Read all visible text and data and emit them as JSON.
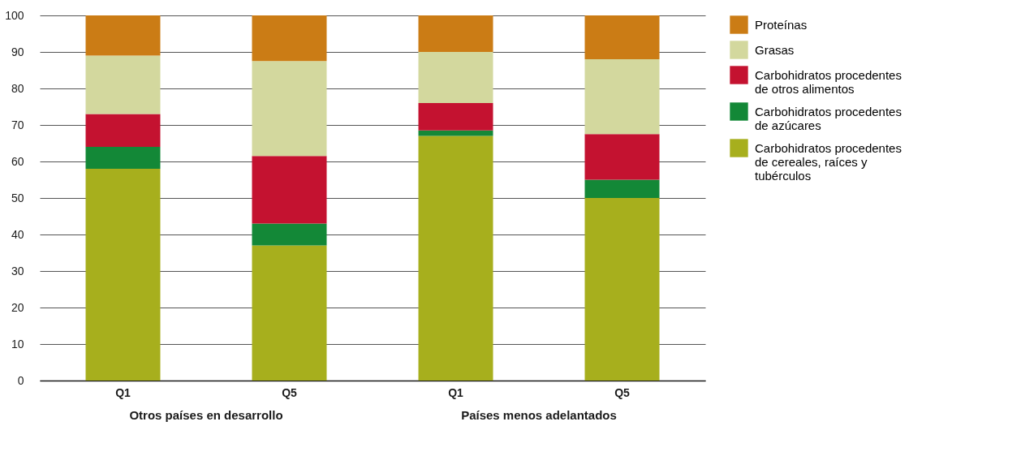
{
  "chart_data": {
    "type": "bar",
    "stacked": true,
    "categories": [
      "Q1",
      "Q5",
      "Q1",
      "Q5"
    ],
    "series": [
      {
        "name": "Carbohidratos procedentes de cereales, raíces y tubérculos",
        "color": "#a7af1d",
        "values": [
          58,
          37,
          67,
          50
        ]
      },
      {
        "name": "Carbohidratos procedentes de azúcares",
        "color": "#138837",
        "values": [
          6,
          6,
          1.5,
          5
        ]
      },
      {
        "name": "Carbohidratos procedentes de otros alimentos",
        "color": "#c41230",
        "values": [
          9,
          18.5,
          7.5,
          12.5
        ]
      },
      {
        "name": "Grasas",
        "color": "#d3d89e",
        "values": [
          16,
          26,
          14,
          20.5
        ]
      },
      {
        "name": "Proteínas",
        "color": "#cb7c15",
        "values": [
          11,
          12.5,
          10,
          12
        ]
      }
    ],
    "annotations": [
      "Otros países en desarrollo",
      "Países menos adelantados"
    ],
    "ylim": [
      0,
      100
    ],
    "yticks": [
      0,
      10,
      20,
      30,
      40,
      50,
      60,
      70,
      80,
      90,
      100
    ],
    "grid": "y",
    "legend": "right"
  }
}
